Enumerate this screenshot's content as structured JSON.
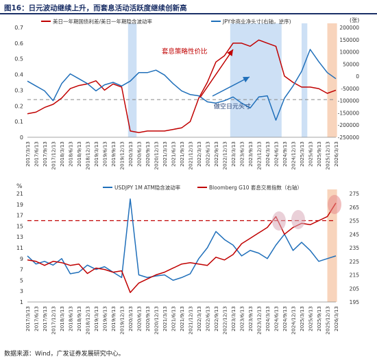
{
  "figure": {
    "title": "图16：日元波动继续上升，而套息活动活跃度继续创新高",
    "source": "数据来源：Wind，广发证券发展研究中心。"
  },
  "chart_data": [
    {
      "type": "line",
      "x": [
        "2017/3/13",
        "2017/6/13",
        "2017/9/13",
        "2017/12/13",
        "2018/3/13",
        "2018/6/13",
        "2018/9/13",
        "2018/12/13",
        "2019/3/13",
        "2019/6/13",
        "2019/9/13",
        "2019/12/13",
        "2020/3/13",
        "2020/6/13",
        "2020/9/13",
        "2020/12/13",
        "2021/3/13",
        "2021/6/13",
        "2021/9/13",
        "2021/12/13",
        "2022/3/13",
        "2022/6/13",
        "2022/9/13",
        "2022/12/13",
        "2023/3/13",
        "2023/6/13",
        "2023/9/13",
        "2023/12/13",
        "2024/3/13",
        "2024/6/13",
        "2024/9/13",
        "2024/12/13",
        "2025/3/13",
        "2025/6/13",
        "2025/9/13",
        "2025/12/13",
        "2026/3/13"
      ],
      "ylim": [
        0,
        0.7
      ],
      "yticks": [
        "0",
        "0.1",
        "0.2",
        "0.3",
        "0.4",
        "0.5",
        "0.6",
        "0.7"
      ],
      "y2lim": [
        -250000,
        200000
      ],
      "y2_reversed": true,
      "y2ticks": [
        "-250000",
        "-200000",
        "-150000",
        "-100000",
        "-50000",
        "0",
        "50000",
        "100000",
        "150000",
        "200000"
      ],
      "y2_unit": "(张)",
      "reference_line": 0.24,
      "series": [
        {
          "name": "美日一年期国债利差/美日一年期隐含波动率",
          "color": "#c00000",
          "values": [
            0.15,
            0.16,
            0.19,
            0.21,
            0.25,
            0.31,
            0.33,
            0.34,
            0.36,
            0.3,
            0.34,
            0.32,
            0.04,
            0.03,
            0.04,
            0.04,
            0.04,
            0.05,
            0.06,
            0.1,
            0.25,
            0.35,
            0.48,
            0.52,
            0.6,
            0.6,
            0.58,
            0.62,
            0.6,
            0.58,
            0.39,
            0.35,
            0.32,
            0.32,
            0.31,
            0.28,
            0.3
          ]
        },
        {
          "name": "JPY非商业净头寸(右轴，逆序)",
          "color": "#1f6fba",
          "values": [
            -20000,
            -40000,
            -60000,
            -100000,
            -30000,
            10000,
            -10000,
            -30000,
            -60000,
            -35000,
            -25000,
            -40000,
            -20000,
            15000,
            15000,
            25000,
            5000,
            -30000,
            -60000,
            -75000,
            -80000,
            -105000,
            -110000,
            -100000,
            -85000,
            -110000,
            -130000,
            -85000,
            -80000,
            -180000,
            -90000,
            -40000,
            20000,
            110000,
            60000,
            15000,
            -10000
          ]
        }
      ],
      "annotations": [
        "套息策略性价比",
        "做空日元头寸"
      ],
      "highlight_bands": [
        [
          "2020/2/20",
          "2020/5/20"
        ],
        [
          "2023/2/13",
          "2024/8/13"
        ],
        [
          "2025/3/13",
          "2025/5/13"
        ],
        [
          "2025/12/13",
          "2026/3/25"
        ]
      ]
    },
    {
      "type": "line",
      "y_unit": "%",
      "x": [
        "2017/3/13",
        "2017/6/13",
        "2017/9/13",
        "2017/12/13",
        "2018/3/13",
        "2018/6/13",
        "2018/9/13",
        "2018/12/13",
        "2019/3/13",
        "2019/6/13",
        "2019/9/13",
        "2019/12/13",
        "2020/3/13",
        "2020/6/13",
        "2020/9/13",
        "2020/12/13",
        "2021/3/13",
        "2021/6/13",
        "2021/9/13",
        "2021/12/13",
        "2022/3/13",
        "2022/6/13",
        "2022/9/13",
        "2022/12/13",
        "2023/3/13",
        "2023/6/13",
        "2023/9/13",
        "2023/12/13",
        "2024/3/13",
        "2024/6/13",
        "2024/9/13",
        "2024/12/13",
        "2025/3/13",
        "2025/6/13",
        "2025/9/13",
        "2025/12/13",
        "2026/3/13"
      ],
      "ylim": [
        1,
        21
      ],
      "yticks": [
        "1",
        "3",
        "5",
        "7",
        "9",
        "11",
        "13",
        "15",
        "17",
        "19",
        "21"
      ],
      "y2lim": [
        195,
        275
      ],
      "y2ticks": [
        "195",
        "205",
        "215",
        "225",
        "235",
        "245",
        "255",
        "265",
        "275"
      ],
      "reference_line_y2": 255,
      "series": [
        {
          "name": "USDJPY 1M ATM隐含波动率",
          "color": "#1f6fba",
          "values": [
            9.5,
            8.0,
            8.5,
            7.8,
            9.0,
            6.2,
            6.5,
            7.8,
            7.0,
            7.5,
            6.5,
            5.5,
            20.0,
            6.0,
            5.5,
            5.8,
            6.0,
            5.0,
            5.5,
            6.2,
            9.0,
            11.0,
            14.0,
            12.5,
            11.5,
            9.5,
            10.5,
            10.0,
            9.0,
            11.5,
            13.5,
            10.5,
            12.0,
            10.5,
            8.5,
            9.0,
            9.5
          ]
        },
        {
          "name": "Bloomberg G10 套息交易指数（右轴）",
          "color": "#c00000",
          "values": [
            226,
            225,
            222,
            225,
            224,
            222,
            223,
            216,
            220,
            219,
            217,
            218,
            202,
            209,
            212,
            215,
            217,
            220,
            223,
            224,
            223,
            222,
            228,
            226,
            230,
            238,
            242,
            246,
            250,
            258,
            245,
            250,
            253,
            252,
            255,
            258,
            268
          ]
        }
      ],
      "highlight_bands": [
        [
          "2024/4/13",
          "2024/5/25"
        ],
        [
          "2024/11/13",
          "2025/1/13"
        ],
        [
          "2025/12/13",
          "2026/3/25"
        ]
      ]
    }
  ]
}
